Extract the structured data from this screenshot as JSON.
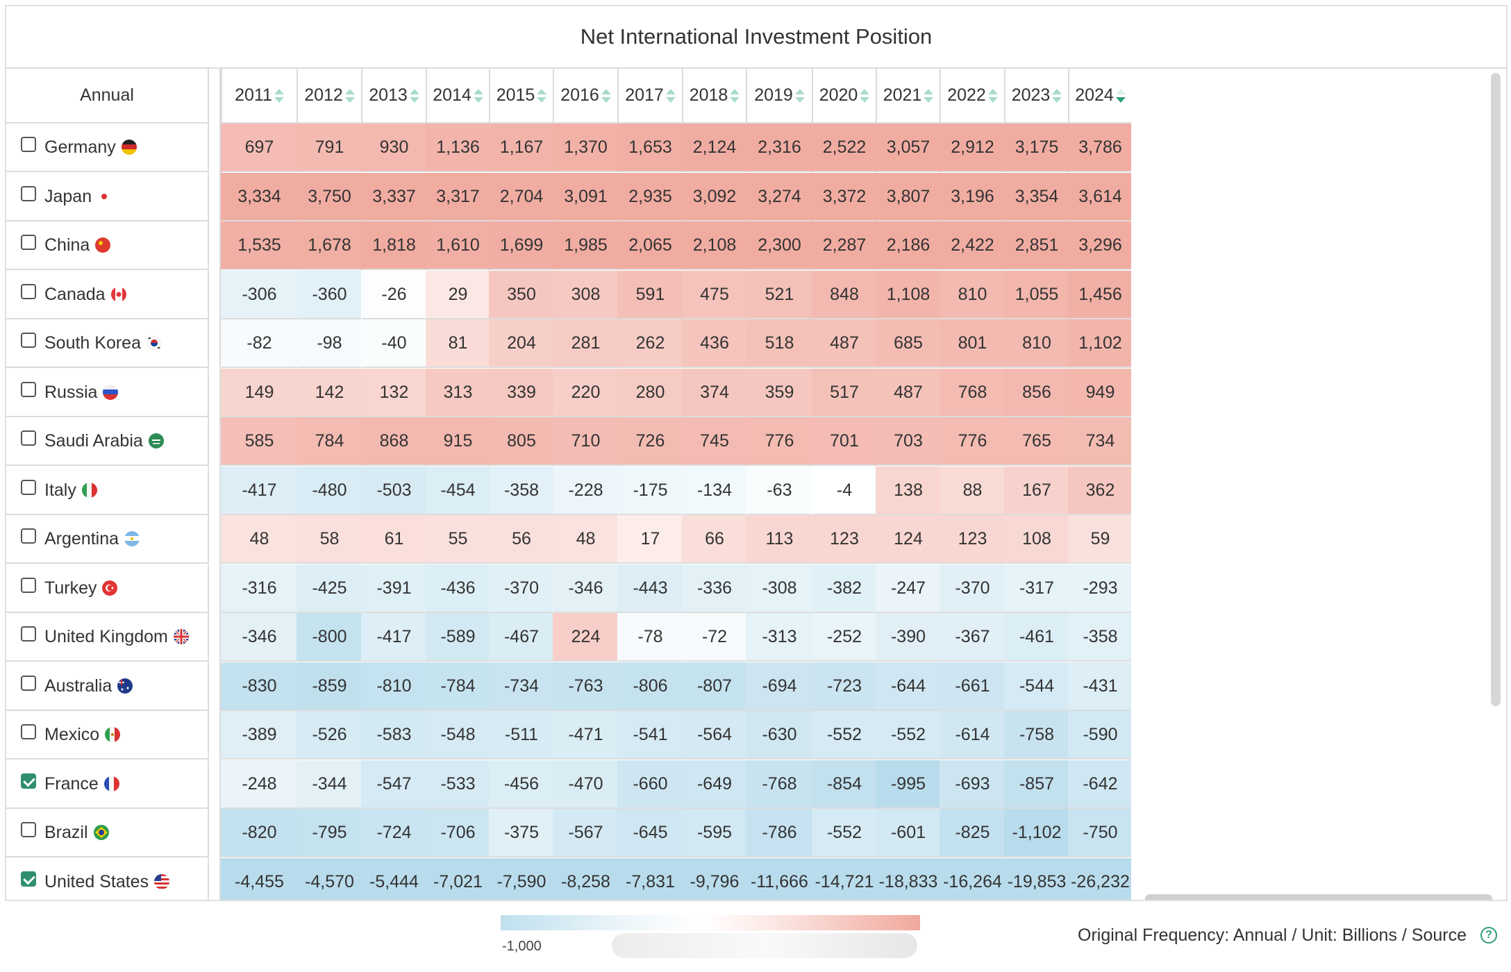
{
  "title": "Net International Investment Position",
  "corner_label": "Annual",
  "years": [
    "2011",
    "2012",
    "2013",
    "2014",
    "2015",
    "2016",
    "2017",
    "2018",
    "2019",
    "2020",
    "2021",
    "2022",
    "2023",
    "2024"
  ],
  "active_sort_year": "2024",
  "colors": {
    "accent": "#2f9e75",
    "negative": "#bfe0ee",
    "positive": "#f0a89d",
    "border": "#dcdcdc"
  },
  "rows": [
    {
      "country": "Germany",
      "checked": false,
      "flag": "germany-flag",
      "values": [
        697,
        791,
        930,
        1136,
        1167,
        1370,
        1653,
        2124,
        2316,
        2522,
        3057,
        2912,
        3175,
        3786
      ],
      "display": [
        "697",
        "791",
        "930",
        "1,136",
        "1,167",
        "1,370",
        "1,653",
        "2,124",
        "2,316",
        "2,522",
        "3,057",
        "2,912",
        "3,175",
        "3,786"
      ]
    },
    {
      "country": "Japan",
      "checked": false,
      "flag": "japan-flag",
      "values": [
        3334,
        3750,
        3337,
        3317,
        2704,
        3091,
        2935,
        3092,
        3274,
        3372,
        3807,
        3196,
        3354,
        3614
      ],
      "display": [
        "3,334",
        "3,750",
        "3,337",
        "3,317",
        "2,704",
        "3,091",
        "2,935",
        "3,092",
        "3,274",
        "3,372",
        "3,807",
        "3,196",
        "3,354",
        "3,614"
      ]
    },
    {
      "country": "China",
      "checked": false,
      "flag": "china-flag",
      "values": [
        1535,
        1678,
        1818,
        1610,
        1699,
        1985,
        2065,
        2108,
        2300,
        2287,
        2186,
        2422,
        2851,
        3296
      ],
      "display": [
        "1,535",
        "1,678",
        "1,818",
        "1,610",
        "1,699",
        "1,985",
        "2,065",
        "2,108",
        "2,300",
        "2,287",
        "2,186",
        "2,422",
        "2,851",
        "3,296"
      ]
    },
    {
      "country": "Canada",
      "checked": false,
      "flag": "canada-flag",
      "values": [
        -306,
        -360,
        -26,
        29,
        350,
        308,
        591,
        475,
        521,
        848,
        1108,
        810,
        1055,
        1456
      ],
      "display": [
        "-306",
        "-360",
        "-26",
        "29",
        "350",
        "308",
        "591",
        "475",
        "521",
        "848",
        "1,108",
        "810",
        "1,055",
        "1,456"
      ]
    },
    {
      "country": "South Korea",
      "checked": false,
      "flag": "south-korea-flag",
      "values": [
        -82,
        -98,
        -40,
        81,
        204,
        281,
        262,
        436,
        518,
        487,
        685,
        801,
        810,
        1102
      ],
      "display": [
        "-82",
        "-98",
        "-40",
        "81",
        "204",
        "281",
        "262",
        "436",
        "518",
        "487",
        "685",
        "801",
        "810",
        "1,102"
      ]
    },
    {
      "country": "Russia",
      "checked": false,
      "flag": "russia-flag",
      "values": [
        149,
        142,
        132,
        313,
        339,
        220,
        280,
        374,
        359,
        517,
        487,
        768,
        856,
        949
      ],
      "display": [
        "149",
        "142",
        "132",
        "313",
        "339",
        "220",
        "280",
        "374",
        "359",
        "517",
        "487",
        "768",
        "856",
        "949"
      ]
    },
    {
      "country": "Saudi Arabia",
      "checked": false,
      "flag": "saudi-arabia-flag",
      "values": [
        585,
        784,
        868,
        915,
        805,
        710,
        726,
        745,
        776,
        701,
        703,
        776,
        765,
        734
      ],
      "display": [
        "585",
        "784",
        "868",
        "915",
        "805",
        "710",
        "726",
        "745",
        "776",
        "701",
        "703",
        "776",
        "765",
        "734"
      ]
    },
    {
      "country": "Italy",
      "checked": false,
      "flag": "italy-flag",
      "values": [
        -417,
        -480,
        -503,
        -454,
        -358,
        -228,
        -175,
        -134,
        -63,
        -4,
        138,
        88,
        167,
        362
      ],
      "display": [
        "-417",
        "-480",
        "-503",
        "-454",
        "-358",
        "-228",
        "-175",
        "-134",
        "-63",
        "-4",
        "138",
        "88",
        "167",
        "362"
      ]
    },
    {
      "country": "Argentina",
      "checked": false,
      "flag": "argentina-flag",
      "values": [
        48,
        58,
        61,
        55,
        56,
        48,
        17,
        66,
        113,
        123,
        124,
        123,
        108,
        59
      ],
      "display": [
        "48",
        "58",
        "61",
        "55",
        "56",
        "48",
        "17",
        "66",
        "113",
        "123",
        "124",
        "123",
        "108",
        "59"
      ]
    },
    {
      "country": "Turkey",
      "checked": false,
      "flag": "turkey-flag",
      "values": [
        -316,
        -425,
        -391,
        -436,
        -370,
        -346,
        -443,
        -336,
        -308,
        -382,
        -247,
        -370,
        -317,
        -293
      ],
      "display": [
        "-316",
        "-425",
        "-391",
        "-436",
        "-370",
        "-346",
        "-443",
        "-336",
        "-308",
        "-382",
        "-247",
        "-370",
        "-317",
        "-293"
      ]
    },
    {
      "country": "United Kingdom",
      "checked": false,
      "flag": "united-kingdom-flag",
      "values": [
        -346,
        -800,
        -417,
        -589,
        -467,
        224,
        -78,
        -72,
        -313,
        -252,
        -390,
        -367,
        -461,
        -358
      ],
      "display": [
        "-346",
        "-800",
        "-417",
        "-589",
        "-467",
        "224",
        "-78",
        "-72",
        "-313",
        "-252",
        "-390",
        "-367",
        "-461",
        "-358"
      ]
    },
    {
      "country": "Australia",
      "checked": false,
      "flag": "australia-flag",
      "values": [
        -830,
        -859,
        -810,
        -784,
        -734,
        -763,
        -806,
        -807,
        -694,
        -723,
        -644,
        -661,
        -544,
        -431
      ],
      "display": [
        "-830",
        "-859",
        "-810",
        "-784",
        "-734",
        "-763",
        "-806",
        "-807",
        "-694",
        "-723",
        "-644",
        "-661",
        "-544",
        "-431"
      ]
    },
    {
      "country": "Mexico",
      "checked": false,
      "flag": "mexico-flag",
      "values": [
        -389,
        -526,
        -583,
        -548,
        -511,
        -471,
        -541,
        -564,
        -630,
        -552,
        -552,
        -614,
        -758,
        -590
      ],
      "display": [
        "-389",
        "-526",
        "-583",
        "-548",
        "-511",
        "-471",
        "-541",
        "-564",
        "-630",
        "-552",
        "-552",
        "-614",
        "-758",
        "-590"
      ]
    },
    {
      "country": "France",
      "checked": true,
      "flag": "france-flag",
      "values": [
        -248,
        -344,
        -547,
        -533,
        -456,
        -470,
        -660,
        -649,
        -768,
        -854,
        -995,
        -693,
        -857,
        -642
      ],
      "display": [
        "-248",
        "-344",
        "-547",
        "-533",
        "-456",
        "-470",
        "-660",
        "-649",
        "-768",
        "-854",
        "-995",
        "-693",
        "-857",
        "-642"
      ]
    },
    {
      "country": "Brazil",
      "checked": false,
      "flag": "brazil-flag",
      "values": [
        -820,
        -795,
        -724,
        -706,
        -375,
        -567,
        -645,
        -595,
        -786,
        -552,
        -601,
        -825,
        -1102,
        -750
      ],
      "display": [
        "-820",
        "-795",
        "-724",
        "-706",
        "-375",
        "-567",
        "-645",
        "-595",
        "-786",
        "-552",
        "-601",
        "-825",
        "-1,102",
        "-750"
      ]
    },
    {
      "country": "United States",
      "checked": true,
      "flag": "united-states-flag",
      "values": [
        -4455,
        -4570,
        -5444,
        -7021,
        -7590,
        -8258,
        -7831,
        -9796,
        -11666,
        -14721,
        -18833,
        -16264,
        -19853,
        -26232
      ],
      "display": [
        "-4,455",
        "-4,570",
        "-5,444",
        "-7,021",
        "-7,590",
        "-8,258",
        "-7,831",
        "-9,796",
        "-11,666",
        "-14,721",
        "-18,833",
        "-16,264",
        "-19,853",
        "-26,232"
      ]
    }
  ],
  "legend": {
    "min_label": "-1,000"
  },
  "footer": {
    "source_text": "Original Frequency: Annual / Unit: Billions / Source",
    "help_glyph": "?"
  }
}
